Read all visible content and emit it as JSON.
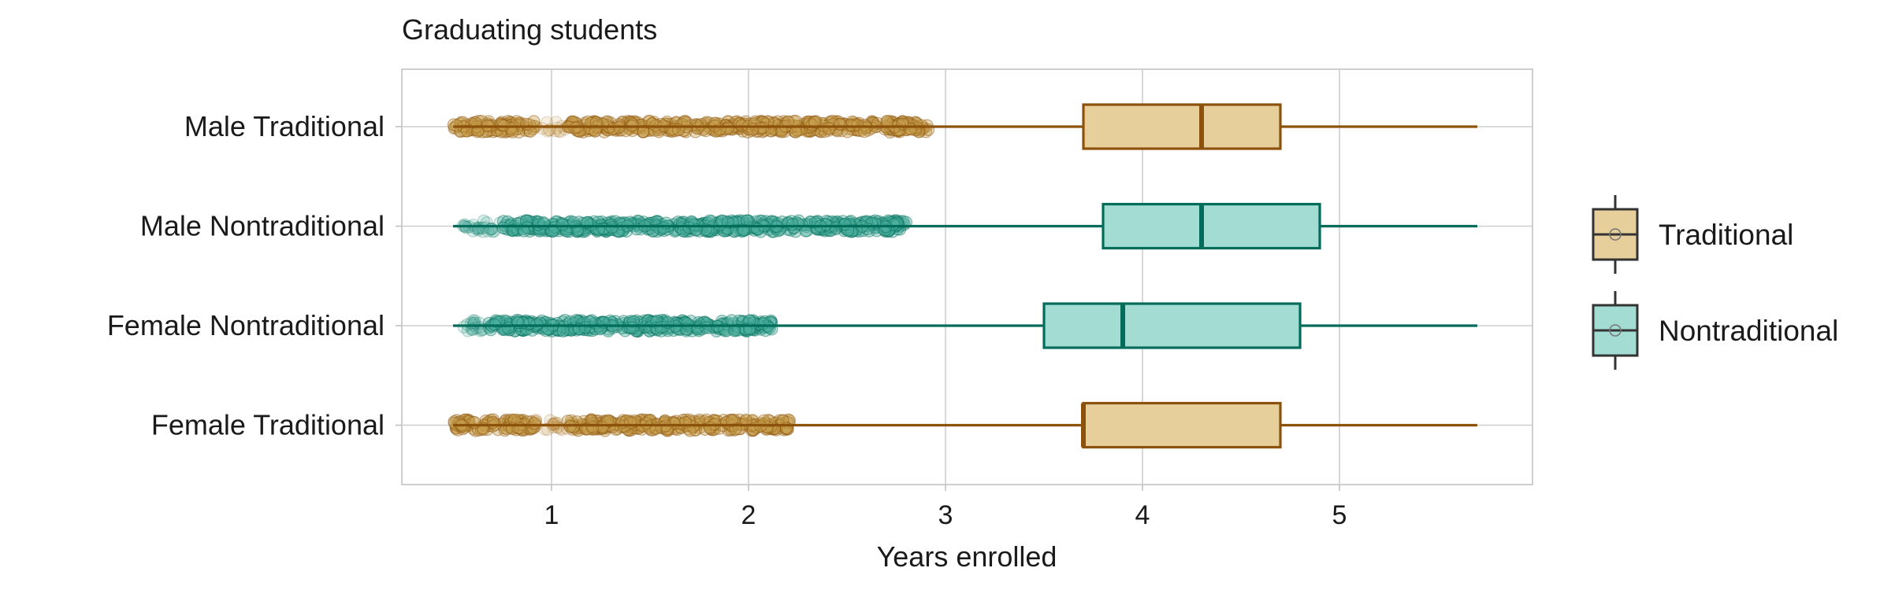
{
  "chart_data": {
    "type": "boxplot",
    "title": "Graduating students",
    "xlabel": "Years enrolled",
    "ylabel": "",
    "xlim": [
      0.24,
      5.98
    ],
    "x_ticks": [
      1,
      2,
      3,
      4,
      5
    ],
    "grid": true,
    "legend_position": "right",
    "categories": [
      "Male Traditional",
      "Male Nontraditional",
      "Female Nontraditional",
      "Female Traditional"
    ],
    "series": [
      {
        "name": "Traditional",
        "fill": "#e6cf9b",
        "stroke": "#8c510a",
        "point_color": "#c8a050",
        "boxes": [
          {
            "category": "Male Traditional",
            "whisker_low": 0.5,
            "q1": 3.7,
            "median": 4.3,
            "q3": 4.7,
            "whisker_high": 5.7,
            "points": [
              [
                0.5,
                0.92,
                1.0
              ],
              [
                0.95,
                1.08,
                0.25
              ],
              [
                1.08,
                2.92,
                1.0
              ]
            ]
          },
          {
            "category": "Female Traditional",
            "whisker_low": 0.5,
            "q1": 3.7,
            "median": 3.7,
            "q3": 4.7,
            "whisker_high": 5.7,
            "points": [
              [
                0.5,
                0.92,
                1.0
              ],
              [
                0.92,
                1.08,
                0.3
              ],
              [
                1.08,
                2.22,
                1.0
              ]
            ]
          }
        ]
      },
      {
        "name": "Nontraditional",
        "fill": "#a3dcd2",
        "stroke": "#016c59",
        "point_color": "#4fb0a0",
        "boxes": [
          {
            "category": "Male Nontraditional",
            "whisker_low": 0.5,
            "q1": 3.8,
            "median": 4.3,
            "q3": 4.9,
            "whisker_high": 5.7,
            "points": [
              [
                0.55,
                0.75,
                0.4
              ],
              [
                0.75,
                2.8,
                1.0
              ]
            ]
          },
          {
            "category": "Female Nontraditional",
            "whisker_low": 0.5,
            "q1": 3.5,
            "median": 3.9,
            "q3": 4.8,
            "whisker_high": 5.7,
            "points": [
              [
                0.55,
                0.68,
                0.4
              ],
              [
                0.68,
                2.12,
                1.0
              ]
            ]
          }
        ]
      }
    ]
  }
}
